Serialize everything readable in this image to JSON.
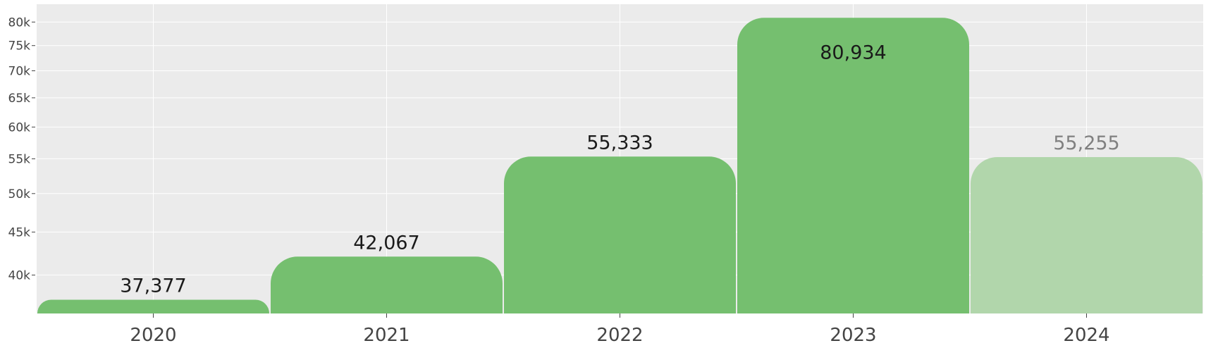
{
  "chart_data": {
    "type": "bar",
    "categories": [
      "2020",
      "2021",
      "2022",
      "2023",
      "2024"
    ],
    "values": [
      37377,
      42067,
      55333,
      80934,
      55255
    ],
    "value_labels": [
      "37,377",
      "42,067",
      "55,333",
      "80,934",
      "55,255"
    ],
    "highlight": [
      false,
      false,
      false,
      false,
      true
    ],
    "scale": "log",
    "ylim": [
      36000,
      84000
    ],
    "yticks": [
      {
        "value": 40000,
        "label": "40k"
      },
      {
        "value": 45000,
        "label": "45k"
      },
      {
        "value": 50000,
        "label": "50k"
      },
      {
        "value": 55000,
        "label": "55k"
      },
      {
        "value": 60000,
        "label": "60k"
      },
      {
        "value": 65000,
        "label": "65k"
      },
      {
        "value": 70000,
        "label": "70k"
      },
      {
        "value": 75000,
        "label": "75k"
      },
      {
        "value": 80000,
        "label": "80k"
      }
    ],
    "grid": true,
    "colors": {
      "bar": "#75bf6f",
      "bar_faded": "#b1d6ab",
      "plot_bg": "#ebebeb",
      "grid": "#ffffff",
      "label": "#1a1a1a",
      "label_faded": "#808080"
    }
  }
}
